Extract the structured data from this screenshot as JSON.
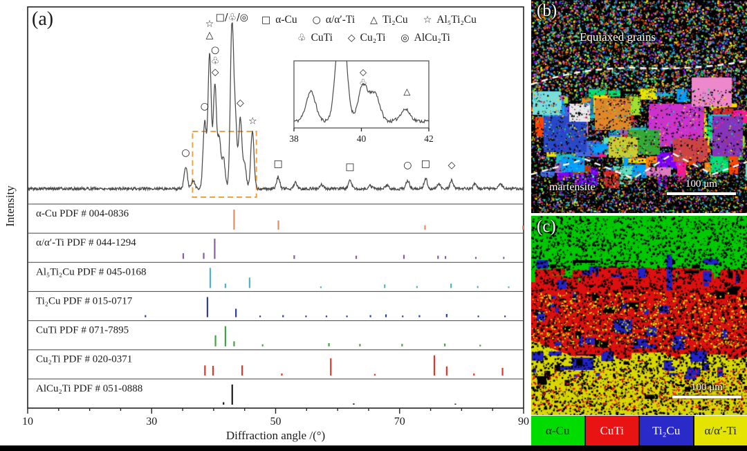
{
  "xrd": {
    "panel_label": "(a)",
    "ylabel": "Intensity",
    "xlabel": "Diffraction angle /(°)",
    "legend": {
      "row1": [
        {
          "symbol": "□",
          "icon": "square-icon",
          "label": "α-Cu"
        },
        {
          "symbol": "○",
          "icon": "circle-icon",
          "label": "α/α′-Ti"
        },
        {
          "symbol": "△",
          "icon": "triangle-icon",
          "label": "Ti₂Cu"
        },
        {
          "symbol": "☆",
          "icon": "star-icon",
          "label": "Al₅Ti₂Cu"
        }
      ],
      "row2": [
        {
          "symbol": "♧",
          "icon": "club-icon",
          "label": "CuTi"
        },
        {
          "symbol": "◇",
          "icon": "diamond-icon",
          "label": "Cu₂Ti"
        },
        {
          "symbol": "◎",
          "icon": "double-circle-icon",
          "label": "AlCu₂Ti"
        }
      ]
    }
  },
  "chart_data": {
    "type": "line",
    "title": "XRD pattern with reference PDF stick patterns",
    "xlabel": "Diffraction angle /(°)",
    "ylabel": "Intensity",
    "xlim": [
      10,
      90
    ],
    "x_ticks": [
      10,
      30,
      50,
      70,
      90
    ],
    "minor_tick_step": 5,
    "curve_color": "#4a4a4a",
    "highlight_color": "#f2a23c",
    "highlight_region": [
      36.6,
      46.9
    ],
    "main_pattern": {
      "peaks": [
        {
          "x": 35.5,
          "h": 0.13
        },
        {
          "x": 36.7,
          "h": 0.05
        },
        {
          "x": 38.55,
          "h": 0.4
        },
        {
          "x": 39.35,
          "h": 0.82
        },
        {
          "x": 40.2,
          "h": 0.62
        },
        {
          "x": 40.9,
          "h": 0.3
        },
        {
          "x": 41.6,
          "h": 0.18
        },
        {
          "x": 42.95,
          "h": 0.98
        },
        {
          "x": 43.5,
          "h": 0.4
        },
        {
          "x": 44.3,
          "h": 0.42
        },
        {
          "x": 45.0,
          "h": 0.14
        },
        {
          "x": 46.25,
          "h": 0.35
        },
        {
          "x": 50.4,
          "h": 0.07
        },
        {
          "x": 53.2,
          "h": 0.035
        },
        {
          "x": 57.4,
          "h": 0.025
        },
        {
          "x": 62.0,
          "h": 0.05
        },
        {
          "x": 65.2,
          "h": 0.02
        },
        {
          "x": 68.0,
          "h": 0.02
        },
        {
          "x": 71.3,
          "h": 0.05
        },
        {
          "x": 74.2,
          "h": 0.06
        },
        {
          "x": 76.3,
          "h": 0.03
        },
        {
          "x": 78.4,
          "h": 0.05
        },
        {
          "x": 82.2,
          "h": 0.03
        },
        {
          "x": 86.3,
          "h": 0.03
        }
      ],
      "annotations": [
        {
          "symbols": [
            "○"
          ],
          "x": 35.5,
          "yf": 0.22
        },
        {
          "symbols": [
            "○"
          ],
          "x": 38.55,
          "yf": 0.5
        },
        {
          "symbols": [
            "☆",
            "△"
          ],
          "x": 39.35,
          "yf": 0.995
        },
        {
          "symbols": [
            "○",
            "♧",
            "◇"
          ],
          "x": 40.25,
          "yf": 0.84
        },
        {
          "text": "□/♧/◎",
          "x": 42.95,
          "yf": 1.035
        },
        {
          "symbols": [
            "◇"
          ],
          "x": 44.3,
          "yf": 0.52
        },
        {
          "symbols": [
            "☆"
          ],
          "x": 46.3,
          "yf": 0.41
        },
        {
          "symbols": [
            "□"
          ],
          "x": 50.4,
          "yf": 0.155
        },
        {
          "symbols": [
            "□"
          ],
          "x": 62.0,
          "yf": 0.135
        },
        {
          "symbols": [
            "○"
          ],
          "x": 71.3,
          "yf": 0.145
        },
        {
          "symbols": [
            "□"
          ],
          "x": 74.2,
          "yf": 0.155
        },
        {
          "symbols": [
            "◇"
          ],
          "x": 78.4,
          "yf": 0.145
        }
      ]
    },
    "inset": {
      "xlim": [
        38,
        42
      ],
      "x_ticks": [
        38,
        40,
        42
      ],
      "peaks": [
        {
          "x": 38.5,
          "h": 0.45
        },
        {
          "x": 39.4,
          "h": 1.8
        },
        {
          "x": 40.05,
          "h": 0.55
        },
        {
          "x": 40.4,
          "h": 0.42
        },
        {
          "x": 41.3,
          "h": 0.18
        }
      ],
      "annotations": [
        {
          "symbols": [
            "◇",
            "♧"
          ],
          "x": 40.05,
          "yf": 0.79
        },
        {
          "symbols": [
            "△"
          ],
          "x": 41.35,
          "yf": 0.5
        }
      ]
    },
    "reference_patterns": [
      {
        "label": "α-Cu PDF # 004-0836",
        "color": "#ed8a5a",
        "peaks": [
          [
            43.3,
            1.0
          ],
          [
            50.45,
            0.46
          ],
          [
            74.1,
            0.22
          ],
          [
            89.9,
            0.2
          ]
        ]
      },
      {
        "label": "α/α′-Ti PDF # 044-1294",
        "color": "#8a5ca8",
        "peaks": [
          [
            35.1,
            0.28
          ],
          [
            38.4,
            0.3
          ],
          [
            40.17,
            1.0
          ],
          [
            53.0,
            0.18
          ],
          [
            63.0,
            0.16
          ],
          [
            70.7,
            0.2
          ],
          [
            76.2,
            0.16
          ],
          [
            77.4,
            0.14
          ],
          [
            82.3,
            0.1
          ],
          [
            86.8,
            0.1
          ]
        ]
      },
      {
        "label": "Al₅Ti₂Cu PDF # 045-0168",
        "color": "#4bb6c8",
        "peaks": [
          [
            39.45,
            1.0
          ],
          [
            41.9,
            0.22
          ],
          [
            45.8,
            0.52
          ],
          [
            57.3,
            0.08
          ],
          [
            67.6,
            0.18
          ],
          [
            72.8,
            0.1
          ],
          [
            78.3,
            0.22
          ],
          [
            82.6,
            0.1
          ],
          [
            87.6,
            0.08
          ]
        ]
      },
      {
        "label": "Ti₂Cu PDF # 015-0717",
        "color": "#2b3f9e",
        "peaks": [
          [
            29.0,
            0.1
          ],
          [
            39.0,
            1.0
          ],
          [
            43.6,
            0.42
          ],
          [
            47.5,
            0.08
          ],
          [
            51.2,
            0.1
          ],
          [
            54.9,
            0.08
          ],
          [
            58.2,
            0.08
          ],
          [
            61.5,
            0.08
          ],
          [
            65.3,
            0.1
          ],
          [
            67.8,
            0.14
          ],
          [
            70.5,
            0.08
          ],
          [
            73.2,
            0.1
          ],
          [
            77.6,
            0.16
          ],
          [
            82.7,
            0.08
          ],
          [
            87.0,
            0.08
          ]
        ]
      },
      {
        "label": "CuTi PDF # 071-7895",
        "color": "#44a244",
        "peaks": [
          [
            40.3,
            0.55
          ],
          [
            41.9,
            1.0
          ],
          [
            43.3,
            0.25
          ],
          [
            47.9,
            0.1
          ],
          [
            58.6,
            0.16
          ],
          [
            63.6,
            0.12
          ],
          [
            70.4,
            0.12
          ],
          [
            77.3,
            0.14
          ],
          [
            83.0,
            0.08
          ]
        ]
      },
      {
        "label": "Cu₂Ti PDF # 020-0371",
        "color": "#e3342a",
        "peaks": [
          [
            38.6,
            0.5
          ],
          [
            39.9,
            0.48
          ],
          [
            44.6,
            0.5
          ],
          [
            51.0,
            0.1
          ],
          [
            58.9,
            0.85
          ],
          [
            66.0,
            0.08
          ],
          [
            75.6,
            1.0
          ],
          [
            77.6,
            0.45
          ],
          [
            82.0,
            0.1
          ],
          [
            86.6,
            0.38
          ]
        ]
      },
      {
        "label": "AlCu₂Ti PDF # 051-0888",
        "color": "#1a1a1a",
        "peaks": [
          [
            41.6,
            0.12
          ],
          [
            43.0,
            1.0
          ],
          [
            62.6,
            0.06
          ],
          [
            79.0,
            0.05
          ]
        ]
      }
    ]
  },
  "micrograph_b": {
    "panel_label": "(b)",
    "top_annotation": "Equiaxed grains",
    "bottom_annotation": "martensite",
    "scale_bar": "100 μm"
  },
  "micrograph_c": {
    "panel_label": "(c)",
    "scale_bar": "100 μm"
  },
  "phase_legend": [
    {
      "label": "α-Cu",
      "color": "#00db00",
      "text_color": "#102810"
    },
    {
      "label": "CuTi",
      "color": "#e81414",
      "text_color": "#ffffff"
    },
    {
      "label": "Ti₂Cu",
      "color": "#2a2ac8",
      "text_color": "#ffffff"
    },
    {
      "label": "α/α′-Ti",
      "color": "#e4e400",
      "text_color": "#202810"
    }
  ]
}
